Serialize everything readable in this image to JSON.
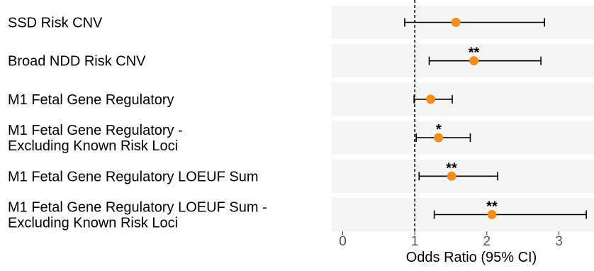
{
  "chart_data": {
    "type": "forest",
    "xlabel": "Odds Ratio (95% CI)",
    "xlim": [
      0,
      3.4
    ],
    "xticks": [
      0,
      1,
      2,
      3
    ],
    "reference_line": 1,
    "reference_line_style": "dashed",
    "point_color": "#F28E1C",
    "panel_color": "#F5F5F5",
    "grid": false,
    "rows": [
      {
        "label_lines": [
          "SSD Risk CNV"
        ],
        "or": 1.57,
        "ci": [
          0.86,
          2.8
        ],
        "significance": ""
      },
      {
        "label_lines": [
          "Broad NDD Risk CNV"
        ],
        "or": 1.82,
        "ci": [
          1.2,
          2.75
        ],
        "significance": "**"
      },
      {
        "label_lines": [
          "M1 Fetal Gene Regulatory"
        ],
        "or": 1.22,
        "ci": [
          0.99,
          1.52
        ],
        "significance": ""
      },
      {
        "label_lines": [
          "M1 Fetal Gene Regulatory -",
          "Excluding Known Risk Loci"
        ],
        "or": 1.33,
        "ci": [
          1.02,
          1.77
        ],
        "significance": "*"
      },
      {
        "label_lines": [
          "M1 Fetal Gene Regulatory LOEUF Sum"
        ],
        "or": 1.51,
        "ci": [
          1.06,
          2.15
        ],
        "significance": "**"
      },
      {
        "label_lines": [
          "M1 Fetal Gene Regulatory LOEUF Sum -",
          "Excluding Known Risk Loci"
        ],
        "or": 2.07,
        "ci": [
          1.27,
          3.38
        ],
        "significance": "**"
      }
    ]
  }
}
